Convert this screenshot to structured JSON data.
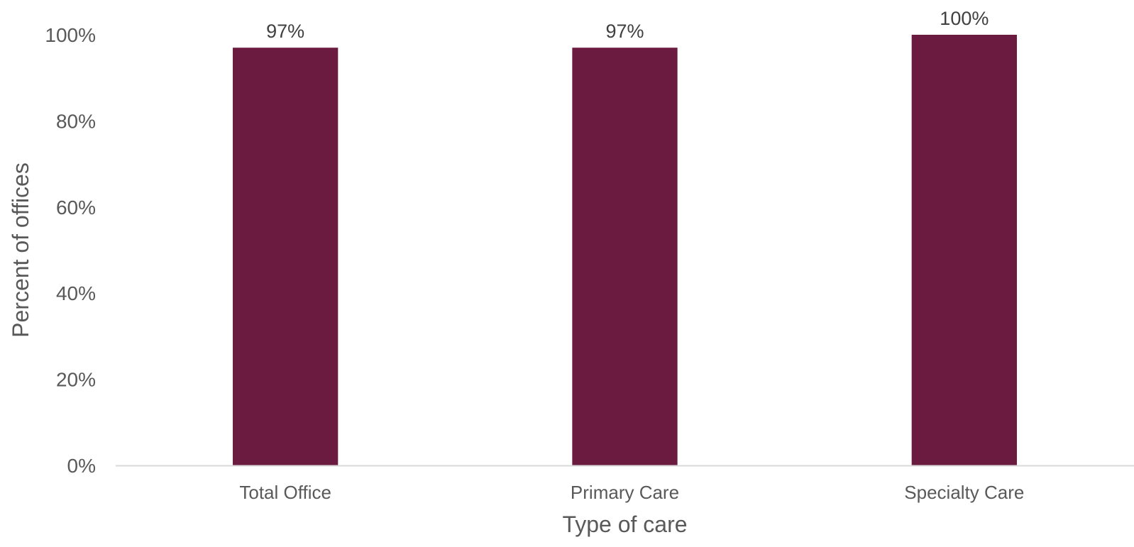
{
  "chart_data": {
    "type": "bar",
    "title": "",
    "xlabel": "Type of care",
    "ylabel": "Percent of offices",
    "categories": [
      "Total Office",
      "Primary Care",
      "Specialty Care"
    ],
    "values": [
      97,
      97,
      100
    ],
    "data_labels": [
      "97%",
      "97%",
      "100%"
    ],
    "ylim": [
      0,
      100
    ],
    "yticks": [
      0,
      20,
      40,
      60,
      80,
      100
    ],
    "ytick_labels": [
      "0%",
      "20%",
      "40%",
      "60%",
      "80%",
      "100%"
    ],
    "grid": false,
    "legend": "none",
    "bar_color": "#6B1B40",
    "axis_color": "#D9D9D9"
  }
}
